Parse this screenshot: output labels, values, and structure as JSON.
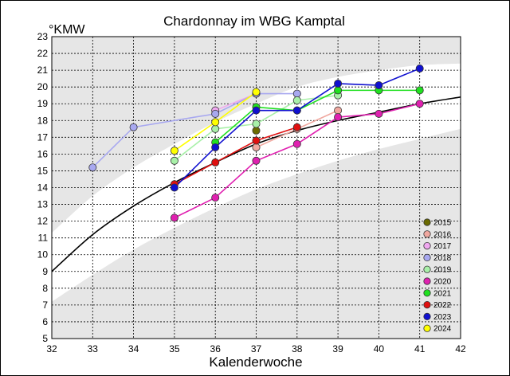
{
  "chart_data": {
    "type": "line",
    "title": "Chardonnay im WBG Kamptal",
    "ylabel": "°KMW",
    "xlabel": "Kalenderwoche",
    "xlim": [
      32,
      42
    ],
    "ylim": [
      5,
      23
    ],
    "x_ticks": [
      32,
      33,
      34,
      35,
      36,
      37,
      38,
      39,
      40,
      41,
      42
    ],
    "y_ticks": [
      5,
      6,
      7,
      8,
      9,
      10,
      11,
      12,
      13,
      14,
      15,
      16,
      17,
      18,
      19,
      20,
      21,
      22,
      23
    ],
    "grid": true,
    "legend_position": "bottom-right",
    "band": {
      "upper": [
        [
          32,
          11.3
        ],
        [
          33,
          13.5
        ],
        [
          34,
          15.2
        ],
        [
          35,
          16.6
        ],
        [
          36,
          17.9
        ],
        [
          37,
          19.0
        ],
        [
          38,
          20.0
        ],
        [
          39,
          20.6
        ],
        [
          40,
          21.0
        ],
        [
          41,
          21.3
        ],
        [
          42,
          21.4
        ]
      ],
      "lower": [
        [
          32,
          7.2
        ],
        [
          33,
          8.8
        ],
        [
          34,
          10.3
        ],
        [
          35,
          11.6
        ],
        [
          36,
          12.8
        ],
        [
          37,
          13.9
        ],
        [
          38,
          14.8
        ],
        [
          39,
          15.6
        ],
        [
          40,
          16.3
        ],
        [
          41,
          16.9
        ],
        [
          42,
          17.5
        ]
      ],
      "color": "#e6e6e6"
    },
    "trend": {
      "color": "#000000",
      "points": [
        [
          32,
          9.0
        ],
        [
          33,
          11.2
        ],
        [
          34,
          12.9
        ],
        [
          35,
          14.3
        ],
        [
          36,
          15.5
        ],
        [
          37,
          16.6
        ],
        [
          38,
          17.4
        ],
        [
          39,
          18.0
        ],
        [
          40,
          18.5
        ],
        [
          41,
          19.0
        ],
        [
          42,
          19.4
        ]
      ]
    },
    "series": [
      {
        "name": "2015",
        "color": "#6b6b00",
        "points": [
          [
            37,
            17.4
          ]
        ]
      },
      {
        "name": "2016",
        "color": "#f0a8a0",
        "points": [
          [
            37,
            16.4
          ],
          [
            38,
            17.5
          ],
          [
            39,
            18.6
          ]
        ]
      },
      {
        "name": "2017",
        "color": "#f0a8f0",
        "points": [
          [
            36,
            18.6
          ],
          [
            37,
            19.6
          ]
        ]
      },
      {
        "name": "2018",
        "color": "#a8a8f0",
        "points": [
          [
            33,
            15.2
          ],
          [
            34,
            17.6
          ],
          [
            36,
            18.4
          ],
          [
            37,
            19.6
          ],
          [
            38,
            19.6
          ]
        ]
      },
      {
        "name": "2019",
        "color": "#a8f0a8",
        "points": [
          [
            35,
            15.6
          ],
          [
            36,
            17.5
          ],
          [
            37,
            17.8
          ],
          [
            38,
            19.2
          ],
          [
            39,
            19.5
          ]
        ]
      },
      {
        "name": "2020",
        "color": "#e020b0",
        "points": [
          [
            35,
            12.2
          ],
          [
            36,
            13.4
          ],
          [
            37,
            15.6
          ],
          [
            38,
            16.6
          ],
          [
            39,
            18.2
          ],
          [
            40,
            18.4
          ],
          [
            41,
            19.0
          ]
        ]
      },
      {
        "name": "2021",
        "color": "#20e020",
        "points": [
          [
            36,
            16.7
          ],
          [
            37,
            18.8
          ],
          [
            38,
            18.6
          ],
          [
            39,
            19.8
          ],
          [
            40,
            19.8
          ],
          [
            41,
            19.8
          ]
        ]
      },
      {
        "name": "2022",
        "color": "#e01010",
        "points": [
          [
            35,
            14.2
          ],
          [
            36,
            15.5
          ],
          [
            37,
            16.8
          ],
          [
            38,
            17.6
          ]
        ]
      },
      {
        "name": "2023",
        "color": "#1010d0",
        "points": [
          [
            35,
            14.0
          ],
          [
            36,
            16.4
          ],
          [
            37,
            18.6
          ],
          [
            38,
            18.6
          ],
          [
            39,
            20.2
          ],
          [
            40,
            20.1
          ],
          [
            41,
            21.1
          ]
        ]
      },
      {
        "name": "2024",
        "color": "#ffff00",
        "points": [
          [
            35,
            16.2
          ],
          [
            36,
            17.9
          ],
          [
            37,
            19.7
          ]
        ]
      }
    ]
  }
}
